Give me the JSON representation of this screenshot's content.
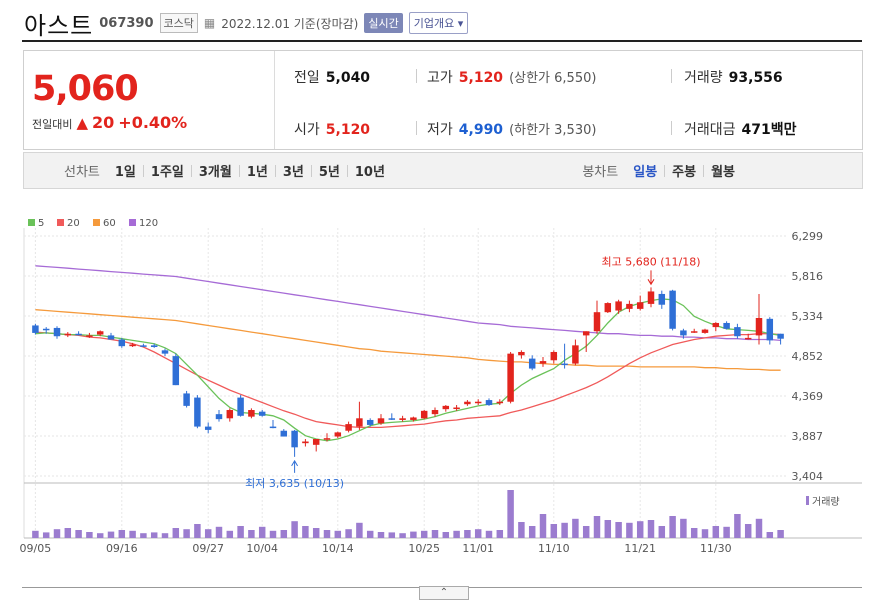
{
  "header": {
    "name": "아스트",
    "code": "067390",
    "market": "코스닥",
    "date": "2022.12.01 기준(장마감)",
    "realtime_label": "실시간",
    "company_label": "기업개요 ▾"
  },
  "summary": {
    "price": "5,060",
    "diff_label": "전일대비",
    "diff_change": "20",
    "diff_pct": "+0.40%",
    "prev_label": "전일",
    "prev": "5,040",
    "open_label": "시가",
    "open": "5,120",
    "high_label": "고가",
    "high": "5,120",
    "upper_limit": "(상한가 6,550)",
    "low_label": "저가",
    "low": "4,990",
    "lower_limit": "(하한가 3,530)",
    "volume_label": "거래량",
    "volume": "93,556",
    "amount_label": "거래대금",
    "amount": "471백만"
  },
  "tabs": {
    "line_label": "선차트",
    "line_items": [
      "1일",
      "1주일",
      "3개월",
      "1년",
      "3년",
      "5년",
      "10년"
    ],
    "candle_label": "봉차트",
    "candle_items": [
      "일봉",
      "주봉",
      "월봉"
    ],
    "candle_selected": 0
  },
  "toggle_label": "⌃",
  "colors": {
    "up": "#e2241d",
    "down": "#2f6fd6",
    "ma5": "#6ac259",
    "ma20": "#f05a5a",
    "ma60": "#f59a3c",
    "ma120": "#a66bd6",
    "volume": "#9b7ccf"
  },
  "chart_data": {
    "type": "candlestick",
    "legend": [
      "5",
      "20",
      "60",
      "120"
    ],
    "y_ticks": [
      "6,299",
      "5,816",
      "5,334",
      "4,852",
      "4,369",
      "3,887",
      "3,404"
    ],
    "ylim": [
      3404,
      6299
    ],
    "x_ticks": [
      "09/05",
      "09/16",
      "09/27",
      "10/04",
      "10/14",
      "10/25",
      "11/01",
      "11/10",
      "11/21",
      "11/30"
    ],
    "max_label": "최고 5,680 (11/18)",
    "min_label": "최저 3,635 (10/13)",
    "volume_label": "거래량",
    "candles": [
      {
        "o": 5220,
        "h": 5240,
        "l": 5110,
        "c": 5130
      },
      {
        "o": 5180,
        "h": 5200,
        "l": 5120,
        "c": 5170
      },
      {
        "o": 5190,
        "h": 5210,
        "l": 5060,
        "c": 5090
      },
      {
        "o": 5100,
        "h": 5140,
        "l": 5080,
        "c": 5120
      },
      {
        "o": 5120,
        "h": 5150,
        "l": 5100,
        "c": 5110
      },
      {
        "o": 5100,
        "h": 5130,
        "l": 5070,
        "c": 5100
      },
      {
        "o": 5110,
        "h": 5160,
        "l": 5090,
        "c": 5150
      },
      {
        "o": 5100,
        "h": 5130,
        "l": 5060,
        "c": 5050
      },
      {
        "o": 5050,
        "h": 5070,
        "l": 4950,
        "c": 4970
      },
      {
        "o": 4970,
        "h": 5010,
        "l": 4960,
        "c": 4990
      },
      {
        "o": 4980,
        "h": 5000,
        "l": 4960,
        "c": 4970
      },
      {
        "o": 4980,
        "h": 5000,
        "l": 4950,
        "c": 4960
      },
      {
        "o": 4920,
        "h": 4940,
        "l": 4850,
        "c": 4880
      },
      {
        "o": 4850,
        "h": 4880,
        "l": 4500,
        "c": 4500
      },
      {
        "o": 4400,
        "h": 4430,
        "l": 4230,
        "c": 4250
      },
      {
        "o": 4350,
        "h": 4380,
        "l": 3980,
        "c": 4000
      },
      {
        "o": 4000,
        "h": 4050,
        "l": 3920,
        "c": 3960
      },
      {
        "o": 4150,
        "h": 4200,
        "l": 4060,
        "c": 4090
      },
      {
        "o": 4100,
        "h": 4220,
        "l": 4060,
        "c": 4200
      },
      {
        "o": 4350,
        "h": 4380,
        "l": 4120,
        "c": 4130
      },
      {
        "o": 4120,
        "h": 4220,
        "l": 4100,
        "c": 4200
      },
      {
        "o": 4180,
        "h": 4200,
        "l": 4120,
        "c": 4130
      },
      {
        "o": 4000,
        "h": 4080,
        "l": 3980,
        "c": 3990
      },
      {
        "o": 3950,
        "h": 3970,
        "l": 3880,
        "c": 3880
      },
      {
        "o": 3950,
        "h": 3960,
        "l": 3635,
        "c": 3750
      },
      {
        "o": 3800,
        "h": 3850,
        "l": 3760,
        "c": 3820
      },
      {
        "o": 3780,
        "h": 3850,
        "l": 3700,
        "c": 3850
      },
      {
        "o": 3850,
        "h": 3920,
        "l": 3820,
        "c": 3860
      },
      {
        "o": 3880,
        "h": 3940,
        "l": 3860,
        "c": 3930
      },
      {
        "o": 3950,
        "h": 4060,
        "l": 3930,
        "c": 4030
      },
      {
        "o": 4000,
        "h": 4300,
        "l": 3960,
        "c": 4100
      },
      {
        "o": 4080,
        "h": 4100,
        "l": 4000,
        "c": 4020
      },
      {
        "o": 4040,
        "h": 4150,
        "l": 4020,
        "c": 4100
      },
      {
        "o": 4100,
        "h": 4160,
        "l": 4080,
        "c": 4090
      },
      {
        "o": 4080,
        "h": 4130,
        "l": 4060,
        "c": 4100
      },
      {
        "o": 4080,
        "h": 4120,
        "l": 4060,
        "c": 4110
      },
      {
        "o": 4100,
        "h": 4200,
        "l": 4090,
        "c": 4190
      },
      {
        "o": 4150,
        "h": 4230,
        "l": 4120,
        "c": 4200
      },
      {
        "o": 4210,
        "h": 4260,
        "l": 4180,
        "c": 4250
      },
      {
        "o": 4220,
        "h": 4260,
        "l": 4190,
        "c": 4230
      },
      {
        "o": 4270,
        "h": 4320,
        "l": 4250,
        "c": 4300
      },
      {
        "o": 4300,
        "h": 4330,
        "l": 4260,
        "c": 4300
      },
      {
        "o": 4320,
        "h": 4340,
        "l": 4250,
        "c": 4260
      },
      {
        "o": 4300,
        "h": 4330,
        "l": 4260,
        "c": 4300
      },
      {
        "o": 4300,
        "h": 4900,
        "l": 4280,
        "c": 4880
      },
      {
        "o": 4860,
        "h": 4920,
        "l": 4820,
        "c": 4900
      },
      {
        "o": 4820,
        "h": 4860,
        "l": 4680,
        "c": 4700
      },
      {
        "o": 4760,
        "h": 4840,
        "l": 4720,
        "c": 4790
      },
      {
        "o": 4800,
        "h": 4920,
        "l": 4760,
        "c": 4900
      },
      {
        "o": 4760,
        "h": 5000,
        "l": 4700,
        "c": 4750
      },
      {
        "o": 4760,
        "h": 5050,
        "l": 4740,
        "c": 4980
      },
      {
        "o": 5100,
        "h": 5150,
        "l": 4900,
        "c": 5150
      },
      {
        "o": 5150,
        "h": 5520,
        "l": 5120,
        "c": 5380
      },
      {
        "o": 5380,
        "h": 5500,
        "l": 5370,
        "c": 5490
      },
      {
        "o": 5400,
        "h": 5530,
        "l": 5360,
        "c": 5510
      },
      {
        "o": 5420,
        "h": 5520,
        "l": 5380,
        "c": 5480
      },
      {
        "o": 5420,
        "h": 5580,
        "l": 5400,
        "c": 5500
      },
      {
        "o": 5480,
        "h": 5680,
        "l": 5440,
        "c": 5630
      },
      {
        "o": 5600,
        "h": 5640,
        "l": 5420,
        "c": 5470
      },
      {
        "o": 5640,
        "h": 5650,
        "l": 5160,
        "c": 5180
      },
      {
        "o": 5160,
        "h": 5180,
        "l": 5060,
        "c": 5100
      },
      {
        "o": 5150,
        "h": 5180,
        "l": 5130,
        "c": 5150
      },
      {
        "o": 5130,
        "h": 5180,
        "l": 5120,
        "c": 5170
      },
      {
        "o": 5200,
        "h": 5260,
        "l": 5150,
        "c": 5250
      },
      {
        "o": 5250,
        "h": 5270,
        "l": 5170,
        "c": 5180
      },
      {
        "o": 5200,
        "h": 5240,
        "l": 5060,
        "c": 5090
      },
      {
        "o": 5060,
        "h": 5120,
        "l": 5050,
        "c": 5070
      },
      {
        "o": 5100,
        "h": 5600,
        "l": 4990,
        "c": 5310
      },
      {
        "o": 5300,
        "h": 5320,
        "l": 4990,
        "c": 5040
      },
      {
        "o": 5120,
        "h": 5120,
        "l": 4990,
        "c": 5060
      }
    ],
    "volume": [
      18,
      14,
      22,
      25,
      20,
      15,
      12,
      16,
      20,
      18,
      12,
      14,
      12,
      25,
      22,
      35,
      22,
      28,
      18,
      30,
      20,
      28,
      18,
      20,
      42,
      30,
      25,
      20,
      18,
      22,
      38,
      18,
      15,
      14,
      12,
      16,
      18,
      20,
      15,
      18,
      20,
      22,
      18,
      20,
      120,
      40,
      30,
      60,
      35,
      38,
      48,
      30,
      55,
      45,
      40,
      38,
      42,
      45,
      30,
      55,
      48,
      25,
      22,
      30,
      28,
      60,
      35,
      48,
      15,
      20
    ],
    "ma5": [
      5120,
      5130,
      5120,
      5110,
      5110,
      5100,
      5100,
      5080,
      5060,
      5040,
      5020,
      5000,
      4950,
      4880,
      4750,
      4620,
      4480,
      4340,
      4230,
      4170,
      4160,
      4150,
      4130,
      4080,
      3980,
      3890,
      3850,
      3830,
      3850,
      3890,
      3950,
      4010,
      4040,
      4050,
      4060,
      4070,
      4090,
      4120,
      4160,
      4190,
      4220,
      4250,
      4270,
      4280,
      4400,
      4500,
      4580,
      4640,
      4700,
      4800,
      4880,
      4970,
      5100,
      5250,
      5380,
      5450,
      5490,
      5520,
      5540,
      5530,
      5460,
      5330,
      5270,
      5220,
      5180,
      5170,
      5160,
      5150,
      5120,
      5100
    ],
    "ma20": [
      5140,
      5130,
      5120,
      5110,
      5100,
      5080,
      5070,
      5050,
      5030,
      5000,
      4960,
      4900,
      4830,
      4760,
      4690,
      4620,
      4560,
      4500,
      4440,
      4390,
      4340,
      4290,
      4240,
      4190,
      4150,
      4100,
      4060,
      4040,
      4020,
      4000,
      3990,
      3990,
      3990,
      4000,
      4010,
      4020,
      4030,
      4050,
      4070,
      4080,
      4100,
      4110,
      4120,
      4130,
      4170,
      4200,
      4240,
      4280,
      4320,
      4370,
      4420,
      4470,
      4530,
      4600,
      4680,
      4760,
      4830,
      4890,
      4940,
      4990,
      5020,
      5050,
      5070,
      5090,
      5100,
      5110,
      5110,
      5120,
      5120,
      5110
    ],
    "ma60": [
      5410,
      5400,
      5390,
      5380,
      5370,
      5360,
      5350,
      5340,
      5330,
      5320,
      5310,
      5300,
      5290,
      5280,
      5260,
      5240,
      5220,
      5200,
      5180,
      5160,
      5140,
      5120,
      5100,
      5080,
      5060,
      5040,
      5020,
      5000,
      4980,
      4960,
      4940,
      4930,
      4910,
      4900,
      4890,
      4880,
      4870,
      4860,
      4850,
      4840,
      4830,
      4810,
      4800,
      4790,
      4780,
      4780,
      4770,
      4760,
      4750,
      4750,
      4740,
      4740,
      4730,
      4730,
      4730,
      4730,
      4720,
      4720,
      4720,
      4720,
      4720,
      4720,
      4710,
      4710,
      4700,
      4700,
      4690,
      4690,
      4680,
      4680
    ],
    "ma120": [
      5940,
      5930,
      5920,
      5910,
      5900,
      5890,
      5880,
      5870,
      5860,
      5850,
      5840,
      5830,
      5820,
      5810,
      5790,
      5770,
      5750,
      5730,
      5710,
      5690,
      5670,
      5650,
      5630,
      5610,
      5590,
      5570,
      5550,
      5530,
      5510,
      5490,
      5470,
      5450,
      5430,
      5410,
      5390,
      5370,
      5350,
      5330,
      5310,
      5290,
      5270,
      5250,
      5240,
      5230,
      5210,
      5200,
      5190,
      5180,
      5170,
      5160,
      5150,
      5140,
      5130,
      5120,
      5120,
      5110,
      5100,
      5100,
      5090,
      5090,
      5080,
      5080,
      5070,
      5070,
      5060,
      5060,
      5050,
      5050,
      5050,
      5040
    ]
  }
}
